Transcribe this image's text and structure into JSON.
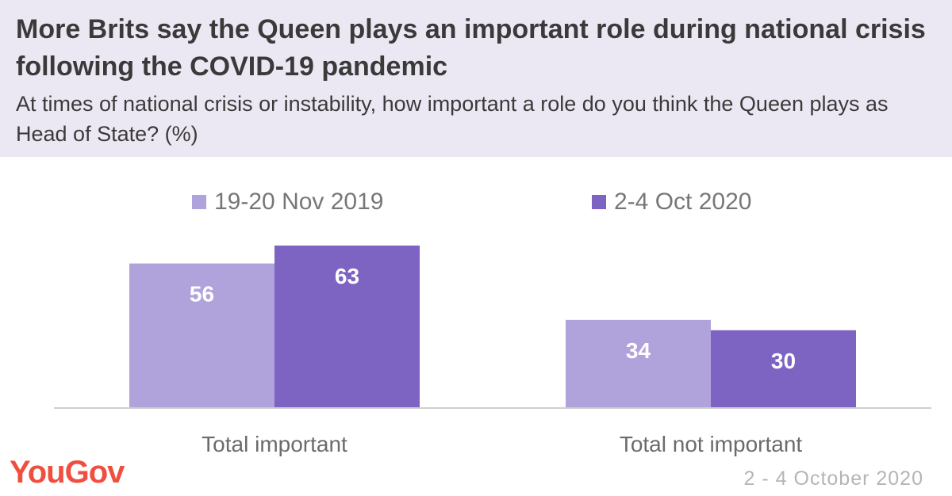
{
  "header": {
    "title": "More Brits say the Queen plays an important role during national crisis following the COVID-19 pandemic",
    "subtitle": "At times of national crisis or instability, how important a role do you think the Queen plays as Head of State? (%)"
  },
  "chart_data": {
    "type": "bar",
    "categories": [
      "Total important",
      "Total not important"
    ],
    "series": [
      {
        "name": "19-20 Nov 2019",
        "values": [
          56,
          34
        ],
        "color": "#b0a3dc"
      },
      {
        "name": "2-4 Oct 2020",
        "values": [
          63,
          30
        ],
        "color": "#7d63c2"
      }
    ],
    "ylim": [
      0,
      100
    ],
    "grid": false,
    "legend": "top-center"
  },
  "footer": {
    "logo": "YouGov",
    "date": "2 - 4 October 2020",
    "logo_color": "#f04e3e"
  }
}
